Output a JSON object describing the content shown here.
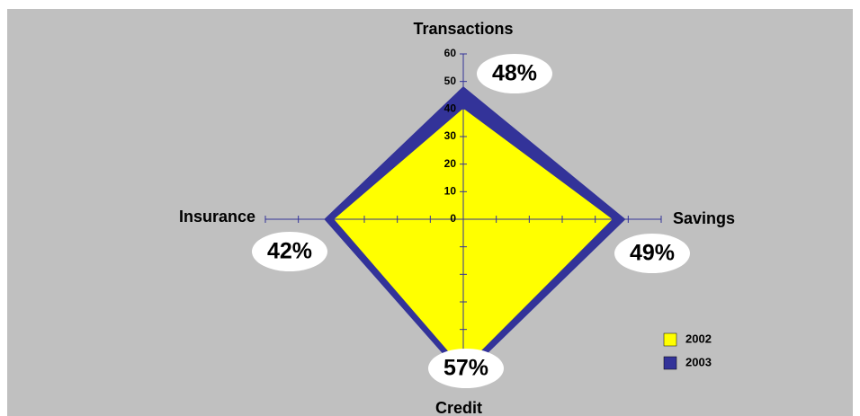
{
  "chart_data": {
    "type": "radar",
    "categories": [
      "Transactions",
      "Savings",
      "Credit",
      "Insurance"
    ],
    "series": [
      {
        "name": "2003",
        "color": "#333399",
        "values": [
          48,
          49,
          57,
          42
        ],
        "value_labels": [
          "48%",
          "49%",
          "57%",
          "42%"
        ]
      },
      {
        "name": "2002",
        "color": "#ffff00",
        "values": [
          40,
          45,
          54,
          39
        ]
      }
    ],
    "ylim": [
      0,
      60
    ],
    "yticks": [
      0,
      10,
      20,
      30,
      40,
      50,
      60
    ],
    "legend": "right"
  }
}
